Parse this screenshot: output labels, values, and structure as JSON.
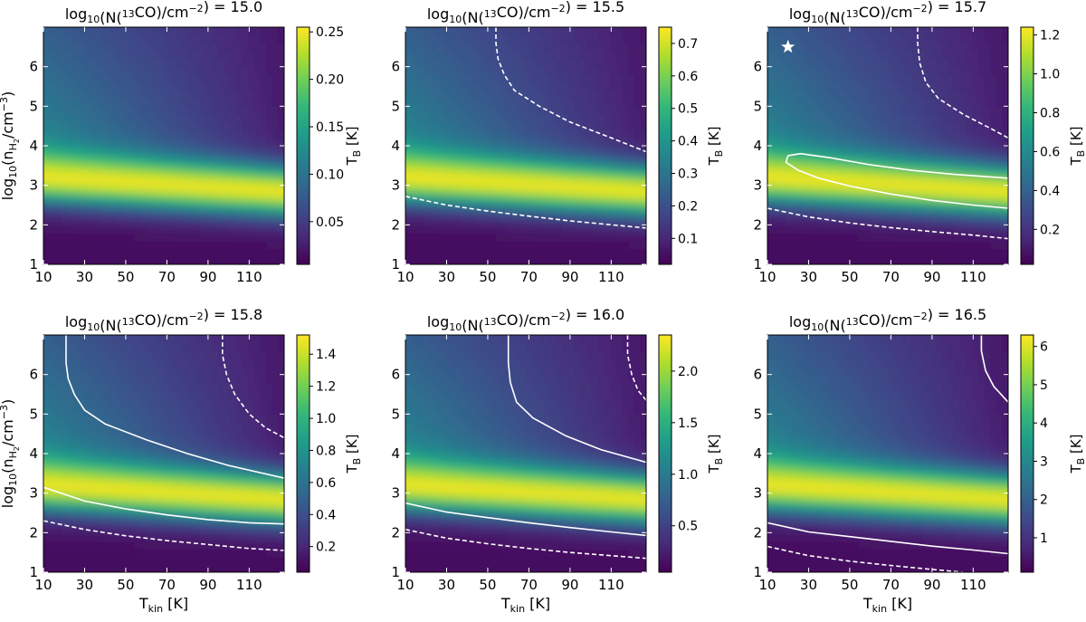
{
  "figure": {
    "title_prefix": "log10(N(13CO)/cm−2) =",
    "xlabel": "Tkin [K]",
    "ylabel": "log10(nH2/cm−3)",
    "cbar_label": "TB [K]",
    "x_ticks": [
      10,
      30,
      50,
      70,
      90,
      110
    ],
    "y_ticks": [
      1,
      2,
      3,
      4,
      5,
      6
    ]
  },
  "chart_data": [
    {
      "type": "heatmap",
      "title": "log10(N(13CO)/cm−2) = 15.0",
      "n_value": "15.0",
      "xlim": [
        10,
        127
      ],
      "ylim": [
        1,
        7
      ],
      "colorbar": {
        "ticks": [
          "0.05",
          "0.10",
          "0.15",
          "0.20",
          "0.25"
        ],
        "tick_values": [
          0.05,
          0.1,
          0.15,
          0.2,
          0.25
        ],
        "range": [
          0.005,
          0.255
        ]
      },
      "contours": []
    },
    {
      "type": "heatmap",
      "title": "log10(N(13CO)/cm−2) = 15.5",
      "n_value": "15.5",
      "xlim": [
        10,
        127
      ],
      "ylim": [
        1,
        7
      ],
      "colorbar": {
        "ticks": [
          "0.1",
          "0.2",
          "0.3",
          "0.4",
          "0.5",
          "0.6",
          "0.7"
        ],
        "tick_values": [
          0.1,
          0.2,
          0.3,
          0.4,
          0.5,
          0.6,
          0.7
        ],
        "range": [
          0.02,
          0.75
        ]
      },
      "contours": [
        {
          "style": "dashed",
          "points": [
            [
              54,
              7.0
            ],
            [
              54,
              6.6
            ],
            [
              55,
              6.2
            ],
            [
              58,
              5.8
            ],
            [
              63,
              5.4
            ],
            [
              75,
              5.0
            ],
            [
              90,
              4.6
            ],
            [
              110,
              4.2
            ],
            [
              127,
              3.85
            ]
          ]
        },
        {
          "style": "dashed",
          "points": [
            [
              10,
              2.72
            ],
            [
              30,
              2.5
            ],
            [
              50,
              2.35
            ],
            [
              70,
              2.22
            ],
            [
              90,
              2.1
            ],
            [
              110,
              2.0
            ],
            [
              127,
              1.92
            ]
          ]
        }
      ]
    },
    {
      "type": "heatmap",
      "title": "log10(N(13CO)/cm−2) = 15.7",
      "n_value": "15.7",
      "xlim": [
        10,
        127
      ],
      "ylim": [
        1,
        7
      ],
      "colorbar": {
        "ticks": [
          "0.2",
          "0.4",
          "0.6",
          "0.8",
          "1.0",
          "1.2"
        ],
        "tick_values": [
          0.2,
          0.4,
          0.6,
          0.8,
          1.0,
          1.2
        ],
        "range": [
          0.02,
          1.24
        ]
      },
      "marker": {
        "symbol": "star",
        "x": 20,
        "y": 6.5
      },
      "contours": [
        {
          "style": "dashed",
          "points": [
            [
              83,
              7.0
            ],
            [
              83,
              6.6
            ],
            [
              84,
              6.1
            ],
            [
              87,
              5.6
            ],
            [
              93,
              5.2
            ],
            [
              105,
              4.8
            ],
            [
              118,
              4.45
            ],
            [
              127,
              4.2
            ]
          ]
        },
        {
          "style": "solid",
          "points": [
            [
              20,
              3.75
            ],
            [
              26,
              3.8
            ],
            [
              40,
              3.7
            ],
            [
              60,
              3.52
            ],
            [
              80,
              3.38
            ],
            [
              100,
              3.28
            ],
            [
              127,
              3.18
            ],
            [
              127,
              2.42
            ],
            [
              110,
              2.5
            ],
            [
              90,
              2.62
            ],
            [
              70,
              2.78
            ],
            [
              50,
              2.98
            ],
            [
              35,
              3.18
            ],
            [
              25,
              3.38
            ],
            [
              19,
              3.58
            ],
            [
              20,
              3.75
            ]
          ]
        },
        {
          "style": "dashed",
          "points": [
            [
              10,
              2.42
            ],
            [
              30,
              2.2
            ],
            [
              50,
              2.05
            ],
            [
              70,
              1.93
            ],
            [
              90,
              1.83
            ],
            [
              110,
              1.74
            ],
            [
              127,
              1.65
            ]
          ]
        }
      ]
    },
    {
      "type": "heatmap",
      "title": "log10(N(13CO)/cm−2) = 15.8",
      "n_value": "15.8",
      "xlim": [
        10,
        127
      ],
      "ylim": [
        1,
        7
      ],
      "colorbar": {
        "ticks": [
          "0.2",
          "0.4",
          "0.6",
          "0.8",
          "1.0",
          "1.2",
          "1.4"
        ],
        "tick_values": [
          0.2,
          0.4,
          0.6,
          0.8,
          1.0,
          1.2,
          1.4
        ],
        "range": [
          0.04,
          1.52
        ]
      },
      "contours": [
        {
          "style": "dashed",
          "points": [
            [
              97,
              7.0
            ],
            [
              97,
              6.5
            ],
            [
              99,
              6.0
            ],
            [
              103,
              5.5
            ],
            [
              110,
              5.0
            ],
            [
              118,
              4.65
            ],
            [
              127,
              4.4
            ]
          ]
        },
        {
          "style": "solid",
          "points": [
            [
              21,
              7.0
            ],
            [
              21,
              6.3
            ],
            [
              22,
              5.9
            ],
            [
              25,
              5.5
            ],
            [
              30,
              5.1
            ],
            [
              40,
              4.75
            ],
            [
              60,
              4.35
            ],
            [
              80,
              4.0
            ],
            [
              100,
              3.7
            ],
            [
              127,
              3.38
            ]
          ]
        },
        {
          "style": "solid",
          "points": [
            [
              10,
              3.15
            ],
            [
              30,
              2.8
            ],
            [
              50,
              2.6
            ],
            [
              70,
              2.45
            ],
            [
              90,
              2.33
            ],
            [
              110,
              2.25
            ],
            [
              127,
              2.22
            ]
          ]
        },
        {
          "style": "dashed",
          "points": [
            [
              10,
              2.3
            ],
            [
              30,
              2.08
            ],
            [
              50,
              1.92
            ],
            [
              70,
              1.8
            ],
            [
              90,
              1.7
            ],
            [
              110,
              1.6
            ],
            [
              127,
              1.55
            ]
          ]
        }
      ]
    },
    {
      "type": "heatmap",
      "title": "log10(N(13CO)/cm−2) = 16.0",
      "n_value": "16.0",
      "xlim": [
        10,
        127
      ],
      "ylim": [
        1,
        7
      ],
      "colorbar": {
        "ticks": [
          "0.5",
          "1.0",
          "1.5",
          "2.0"
        ],
        "tick_values": [
          0.5,
          1.0,
          1.5,
          2.0
        ],
        "range": [
          0.05,
          2.35
        ]
      },
      "contours": [
        {
          "style": "dashed",
          "points": [
            [
              118,
              7.0
            ],
            [
              118,
              6.5
            ],
            [
              120,
              6.0
            ],
            [
              123,
              5.6
            ],
            [
              127,
              5.35
            ]
          ]
        },
        {
          "style": "solid",
          "points": [
            [
              60,
              7.0
            ],
            [
              60,
              6.3
            ],
            [
              61,
              5.8
            ],
            [
              64,
              5.3
            ],
            [
              72,
              4.9
            ],
            [
              88,
              4.45
            ],
            [
              105,
              4.1
            ],
            [
              127,
              3.78
            ]
          ]
        },
        {
          "style": "solid",
          "points": [
            [
              10,
              2.75
            ],
            [
              30,
              2.52
            ],
            [
              50,
              2.38
            ],
            [
              70,
              2.25
            ],
            [
              90,
              2.13
            ],
            [
              110,
              2.02
            ],
            [
              127,
              1.93
            ]
          ]
        },
        {
          "style": "dashed",
          "points": [
            [
              10,
              2.08
            ],
            [
              30,
              1.86
            ],
            [
              50,
              1.72
            ],
            [
              70,
              1.6
            ],
            [
              90,
              1.5
            ],
            [
              110,
              1.42
            ],
            [
              127,
              1.35
            ]
          ]
        }
      ]
    },
    {
      "type": "heatmap",
      "title": "log10(N(13CO)/cm−2) = 16.5",
      "n_value": "16.5",
      "xlim": [
        10,
        127
      ],
      "ylim": [
        1,
        7
      ],
      "colorbar": {
        "ticks": [
          "1",
          "2",
          "3",
          "4",
          "5",
          "6"
        ],
        "tick_values": [
          1,
          2,
          3,
          4,
          5,
          6
        ],
        "range": [
          0.1,
          6.3
        ]
      },
      "contours": [
        {
          "style": "solid",
          "points": [
            [
              114,
              7.0
            ],
            [
              114,
              6.6
            ],
            [
              116,
              6.1
            ],
            [
              120,
              5.7
            ],
            [
              127,
              5.3
            ]
          ]
        },
        {
          "style": "solid",
          "points": [
            [
              10,
              2.25
            ],
            [
              30,
              2.02
            ],
            [
              50,
              1.9
            ],
            [
              70,
              1.78
            ],
            [
              90,
              1.66
            ],
            [
              110,
              1.56
            ],
            [
              127,
              1.47
            ]
          ]
        },
        {
          "style": "dashed",
          "points": [
            [
              10,
              1.65
            ],
            [
              30,
              1.42
            ],
            [
              50,
              1.28
            ],
            [
              70,
              1.17
            ],
            [
              90,
              1.07
            ],
            [
              105,
              1.0
            ]
          ]
        }
      ]
    }
  ]
}
